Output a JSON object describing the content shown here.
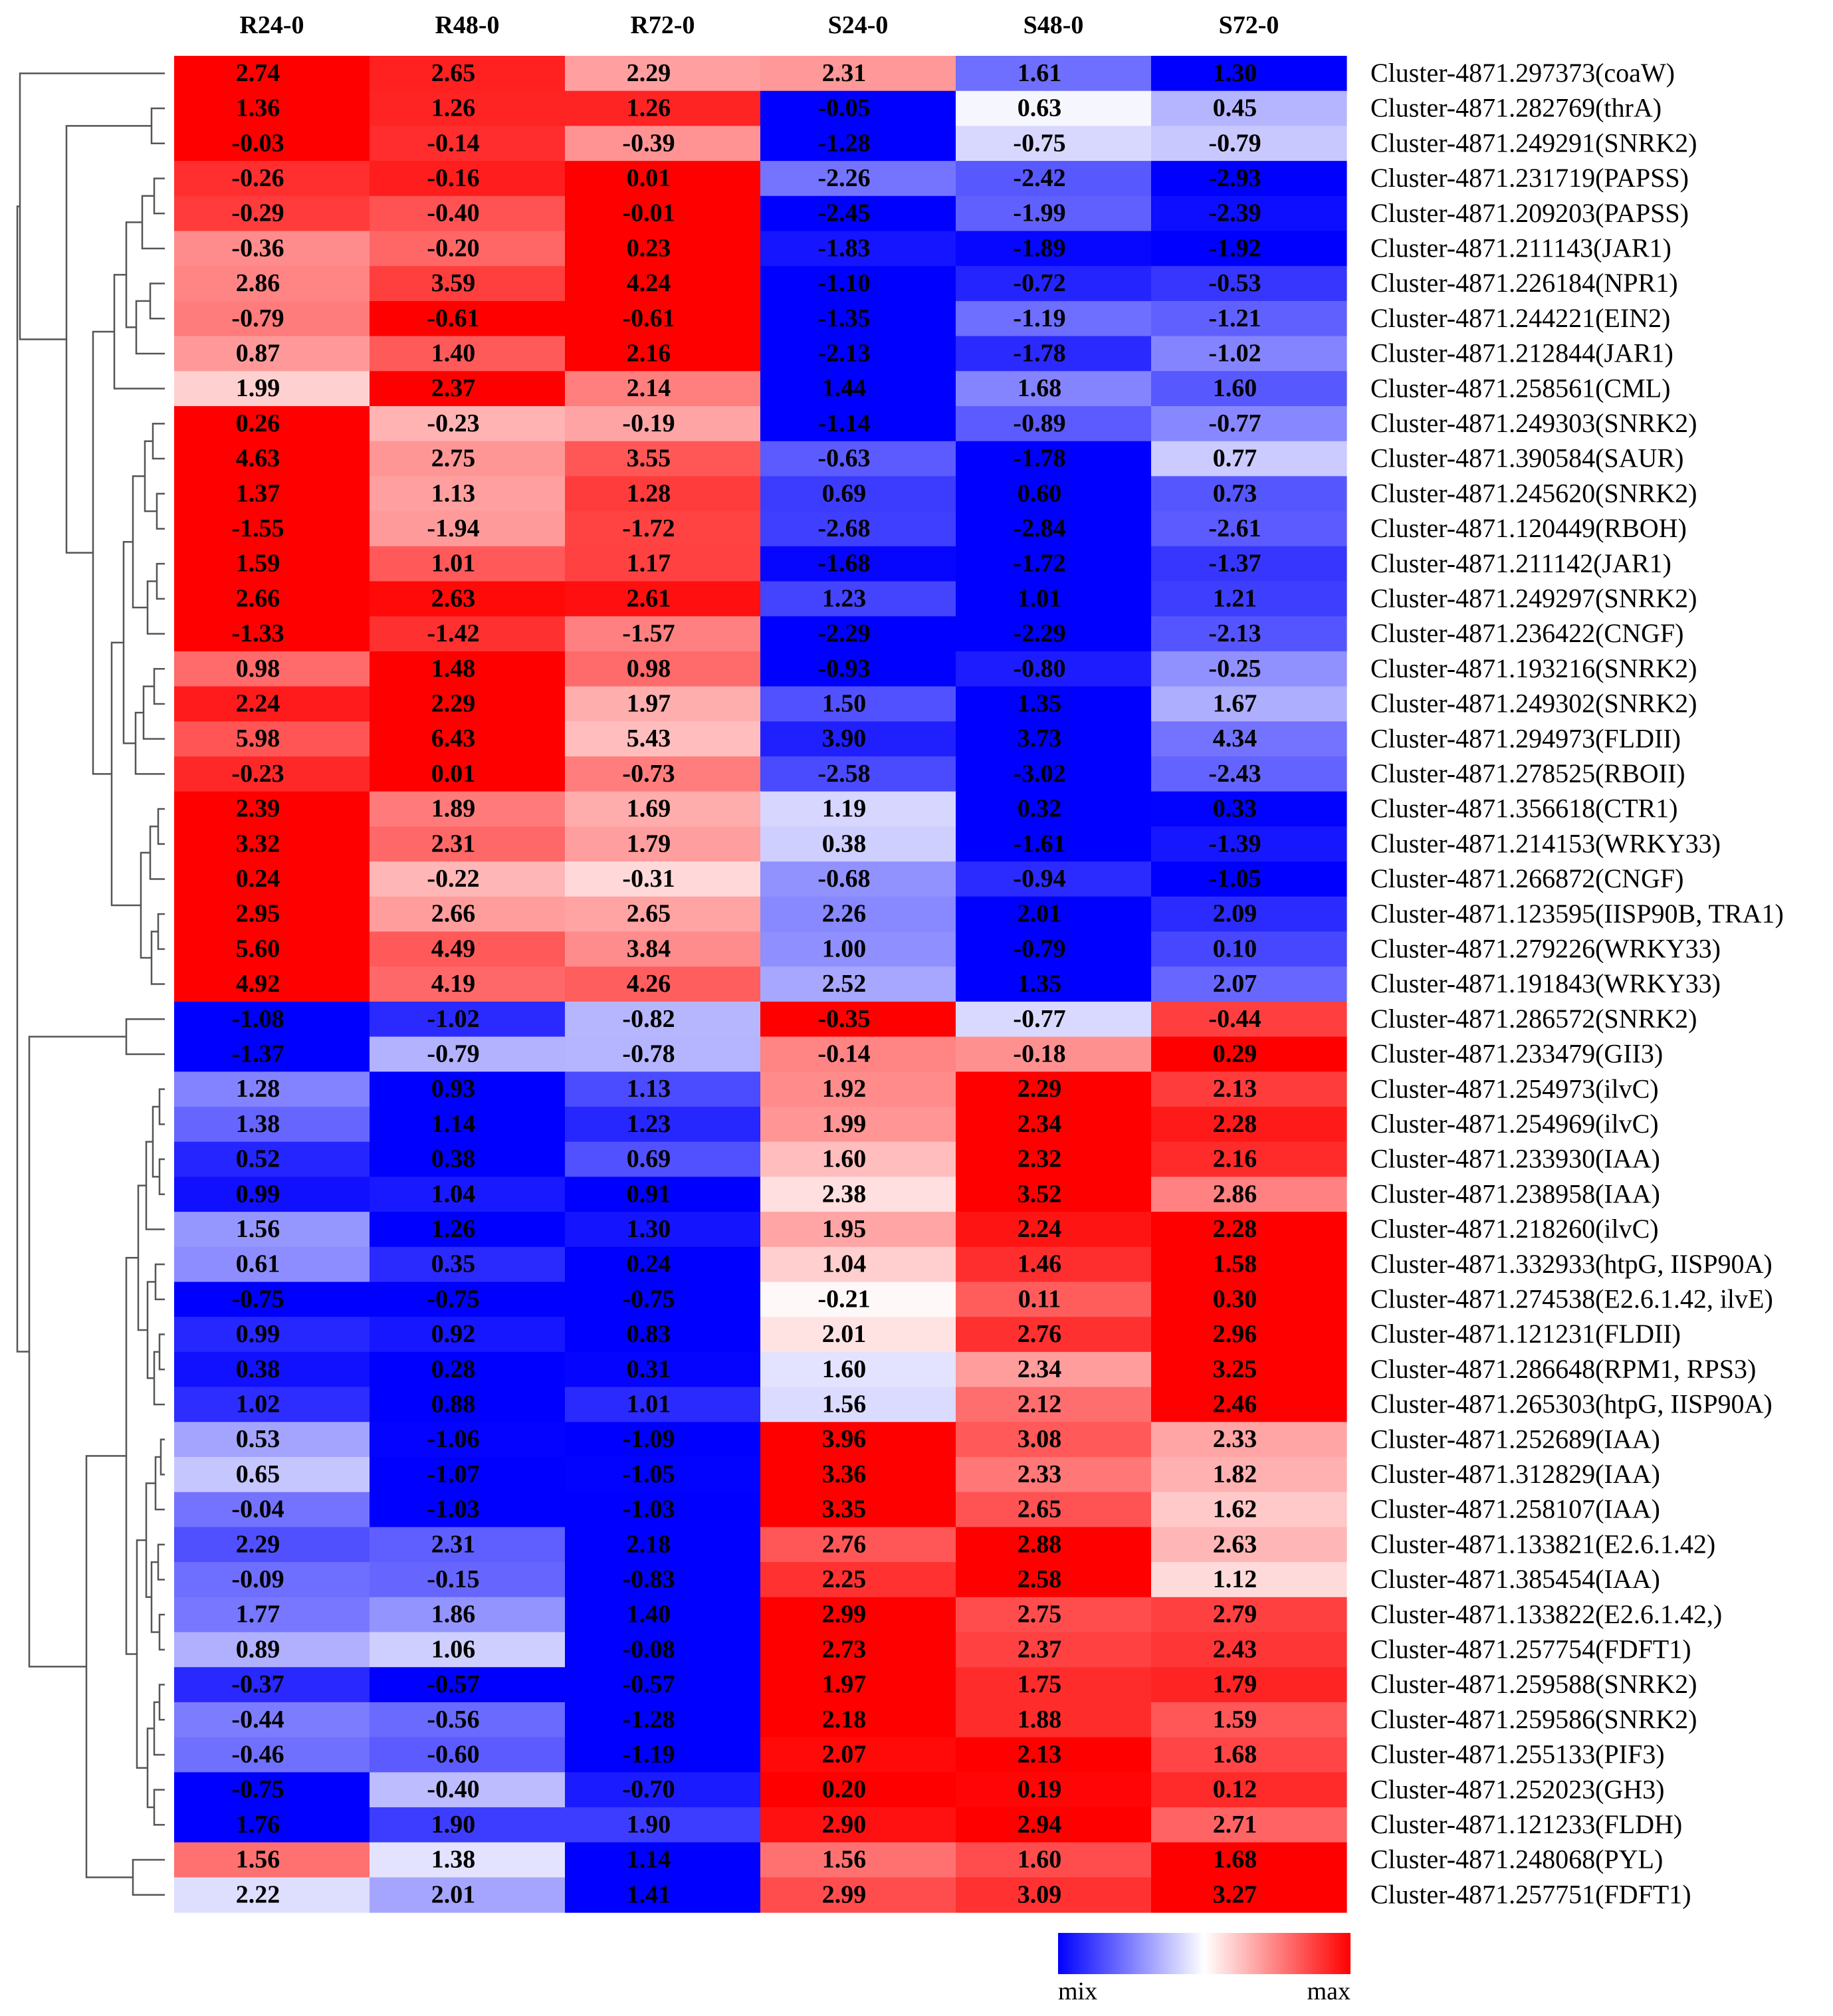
{
  "chart_data": {
    "type": "heatmap",
    "title": "",
    "xlabel": "",
    "ylabel": "",
    "columns": [
      "R24-0",
      "R48-0",
      "R72-0",
      "S24-0",
      "S48-0",
      "S72-0"
    ],
    "rows": [
      "Cluster-4871.297373(coaW)",
      "Cluster-4871.282769(thrA)",
      "Cluster-4871.249291(SNRK2)",
      "Cluster-4871.231719(PAPSS)",
      "Cluster-4871.209203(PAPSS)",
      "Cluster-4871.211143(JAR1)",
      "Cluster-4871.226184(NPR1)",
      "Cluster-4871.244221(EIN2)",
      "Cluster-4871.212844(JAR1)",
      "Cluster-4871.258561(CML)",
      "Cluster-4871.249303(SNRK2)",
      "Cluster-4871.390584(SAUR)",
      "Cluster-4871.245620(SNRK2)",
      "Cluster-4871.120449(RBOH)",
      "Cluster-4871.211142(JAR1)",
      "Cluster-4871.249297(SNRK2)",
      "Cluster-4871.236422(CNGF)",
      "Cluster-4871.193216(SNRK2)",
      "Cluster-4871.249302(SNRK2)",
      "Cluster-4871.294973(FLDII)",
      "Cluster-4871.278525(RBOII)",
      "Cluster-4871.356618(CTR1)",
      "Cluster-4871.214153(WRKY33)",
      "Cluster-4871.266872(CNGF)",
      "Cluster-4871.123595(IISP90B, TRA1)",
      "Cluster-4871.279226(WRKY33)",
      "Cluster-4871.191843(WRKY33)",
      "Cluster-4871.286572(SNRK2)",
      "Cluster-4871.233479(GII3)",
      "Cluster-4871.254973(ilvC)",
      "Cluster-4871.254969(ilvC)",
      "Cluster-4871.233930(IAA)",
      "Cluster-4871.238958(IAA)",
      "Cluster-4871.218260(ilvC)",
      "Cluster-4871.332933(htpG, IISP90A)",
      "Cluster-4871.274538(E2.6.1.42, ilvE)",
      "Cluster-4871.121231(FLDII)",
      "Cluster-4871.286648(RPM1, RPS3)",
      "Cluster-4871.265303(htpG, IISP90A)",
      "Cluster-4871.252689(IAA)",
      "Cluster-4871.312829(IAA)",
      "Cluster-4871.258107(IAA)",
      "Cluster-4871.133821(E2.6.1.42)",
      "Cluster-4871.385454(IAA)",
      "Cluster-4871.133822(E2.6.1.42,)",
      "Cluster-4871.257754(FDFT1)",
      "Cluster-4871.259588(SNRK2)",
      "Cluster-4871.259586(SNRK2)",
      "Cluster-4871.255133(PIF3)",
      "Cluster-4871.252023(GH3)",
      "Cluster-4871.121233(FLDH)",
      "Cluster-4871.248068(PYL)",
      "Cluster-4871.257751(FDFT1)"
    ],
    "values": [
      [
        "2.74",
        "2.65",
        "2.29",
        "2.31",
        "1.61",
        "1.30"
      ],
      [
        "1.36",
        "1.26",
        "1.26",
        "-0.05",
        "0.63",
        "0.45"
      ],
      [
        "-0.03",
        "-0.14",
        "-0.39",
        "-1.28",
        "-0.75",
        "-0.79"
      ],
      [
        "-0.26",
        "-0.16",
        "0.01",
        "-2.26",
        "-2.42",
        "-2.93"
      ],
      [
        "-0.29",
        "-0.40",
        "-0.01",
        "-2.45",
        "-1.99",
        "-2.39"
      ],
      [
        "-0.36",
        "-0.20",
        "0.23",
        "-1.83",
        "-1.89",
        "-1.92"
      ],
      [
        "2.86",
        "3.59",
        "4.24",
        "-1.10",
        "-0.72",
        "-0.53"
      ],
      [
        "-0.79",
        "-0.61",
        "-0.61",
        "-1.35",
        "-1.19",
        "-1.21"
      ],
      [
        "0.87",
        "1.40",
        "2.16",
        "-2.13",
        "-1.78",
        "-1.02"
      ],
      [
        "1.99",
        "2.37",
        "2.14",
        "1.44",
        "1.68",
        "1.60"
      ],
      [
        "0.26",
        "-0.23",
        "-0.19",
        "-1.14",
        "-0.89",
        "-0.77"
      ],
      [
        "4.63",
        "2.75",
        "3.55",
        "-0.63",
        "-1.78",
        "0.77"
      ],
      [
        "1.37",
        "1.13",
        "1.28",
        "0.69",
        "0.60",
        "0.73"
      ],
      [
        "-1.55",
        "-1.94",
        "-1.72",
        "-2.68",
        "-2.84",
        "-2.61"
      ],
      [
        "1.59",
        "1.01",
        "1.17",
        "-1.68",
        "-1.72",
        "-1.37"
      ],
      [
        "2.66",
        "2.63",
        "2.61",
        "1.23",
        "1.01",
        "1.21"
      ],
      [
        "-1.33",
        "-1.42",
        "-1.57",
        "-2.29",
        "-2.29",
        "-2.13"
      ],
      [
        "0.98",
        "1.48",
        "0.98",
        "-0.93",
        "-0.80",
        "-0.25"
      ],
      [
        "2.24",
        "2.29",
        "1.97",
        "1.50",
        "1.35",
        "1.67"
      ],
      [
        "5.98",
        "6.43",
        "5.43",
        "3.90",
        "3.73",
        "4.34"
      ],
      [
        "-0.23",
        "0.01",
        "-0.73",
        "-2.58",
        "-3.02",
        "-2.43"
      ],
      [
        "2.39",
        "1.89",
        "1.69",
        "1.19",
        "0.32",
        "0.33"
      ],
      [
        "3.32",
        "2.31",
        "1.79",
        "0.38",
        "-1.61",
        "-1.39"
      ],
      [
        "0.24",
        "-0.22",
        "-0.31",
        "-0.68",
        "-0.94",
        "-1.05"
      ],
      [
        "2.95",
        "2.66",
        "2.65",
        "2.26",
        "2.01",
        "2.09"
      ],
      [
        "5.60",
        "4.49",
        "3.84",
        "1.00",
        "-0.79",
        "0.10"
      ],
      [
        "4.92",
        "4.19",
        "4.26",
        "2.52",
        "1.35",
        "2.07"
      ],
      [
        "-1.08",
        "-1.02",
        "-0.82",
        "-0.35",
        "-0.77",
        "-0.44"
      ],
      [
        "-1.37",
        "-0.79",
        "-0.78",
        "-0.14",
        "-0.18",
        "0.29"
      ],
      [
        "1.28",
        "0.93",
        "1.13",
        "1.92",
        "2.29",
        "2.13"
      ],
      [
        "1.38",
        "1.14",
        "1.23",
        "1.99",
        "2.34",
        "2.28"
      ],
      [
        "0.52",
        "0.38",
        "0.69",
        "1.60",
        "2.32",
        "2.16"
      ],
      [
        "0.99",
        "1.04",
        "0.91",
        "2.38",
        "3.52",
        "2.86"
      ],
      [
        "1.56",
        "1.26",
        "1.30",
        "1.95",
        "2.24",
        "2.28"
      ],
      [
        "0.61",
        "0.35",
        "0.24",
        "1.04",
        "1.46",
        "1.58"
      ],
      [
        "-0.75",
        "-0.75",
        "-0.75",
        "-0.21",
        "0.11",
        "0.30"
      ],
      [
        "0.99",
        "0.92",
        "0.83",
        "2.01",
        "2.76",
        "2.96"
      ],
      [
        "0.38",
        "0.28",
        "0.31",
        "1.60",
        "2.34",
        "3.25"
      ],
      [
        "1.02",
        "0.88",
        "1.01",
        "1.56",
        "2.12",
        "2.46"
      ],
      [
        "0.53",
        "-1.06",
        "-1.09",
        "3.96",
        "3.08",
        "2.33"
      ],
      [
        "0.65",
        "-1.07",
        "-1.05",
        "3.36",
        "2.33",
        "1.82"
      ],
      [
        "-0.04",
        "-1.03",
        "-1.03",
        "3.35",
        "2.65",
        "1.62"
      ],
      [
        "2.29",
        "2.31",
        "2.18",
        "2.76",
        "2.88",
        "2.63"
      ],
      [
        "-0.09",
        "-0.15",
        "-0.83",
        "2.25",
        "2.58",
        "1.12"
      ],
      [
        "1.77",
        "1.86",
        "1.40",
        "2.99",
        "2.75",
        "2.79"
      ],
      [
        "0.89",
        "1.06",
        "-0.08",
        "2.73",
        "2.37",
        "2.43"
      ],
      [
        "-0.37",
        "-0.57",
        "-0.57",
        "1.97",
        "1.75",
        "1.79"
      ],
      [
        "-0.44",
        "-0.56",
        "-1.28",
        "2.18",
        "1.88",
        "1.59"
      ],
      [
        "-0.46",
        "-0.60",
        "-1.19",
        "2.07",
        "2.13",
        "1.68"
      ],
      [
        "-0.75",
        "-0.40",
        "-0.70",
        "0.20",
        "0.19",
        "0.12"
      ],
      [
        "1.76",
        "1.90",
        "1.90",
        "2.90",
        "2.94",
        "2.71"
      ],
      [
        "1.56",
        "1.38",
        "1.14",
        "1.56",
        "1.60",
        "1.68"
      ],
      [
        "2.22",
        "2.01",
        "1.41",
        "2.99",
        "3.09",
        "3.27"
      ]
    ],
    "legend": {
      "min_label": "mix",
      "max_label": "max",
      "colors": [
        "#0000ff",
        "#ffffff",
        "#ff0000"
      ],
      "placement": "bottom-right"
    },
    "dendrogram": "left"
  }
}
